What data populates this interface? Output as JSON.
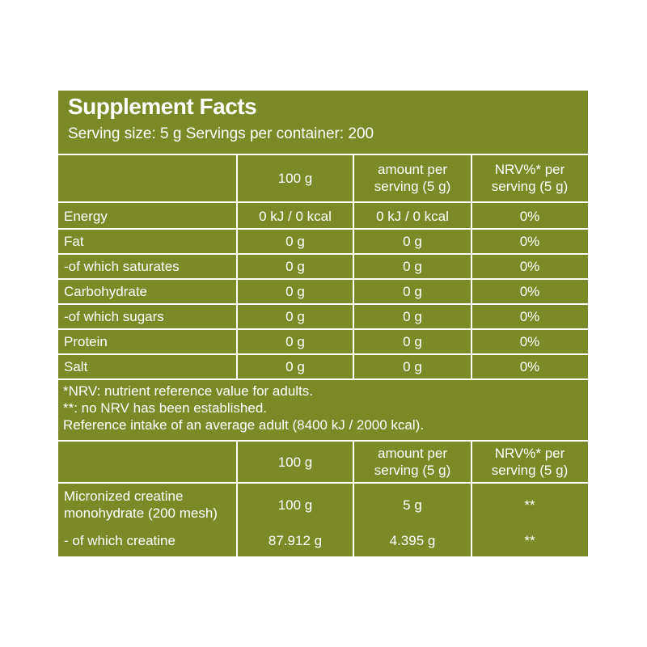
{
  "header": {
    "title": "Supplement Facts",
    "serving": "Serving size: 5 g Servings per container: 200"
  },
  "nutrition_table": {
    "columns": [
      [
        "100 g"
      ],
      [
        "amount per",
        "serving (5 g)"
      ],
      [
        "NRV%* per",
        "serving (5 g)"
      ]
    ],
    "rows": [
      [
        "Energy",
        "0 kJ / 0 kcal",
        "0 kJ / 0 kcal",
        "0%"
      ],
      [
        "Fat",
        "0 g",
        "0 g",
        "0%"
      ],
      [
        "-of which saturates",
        "0 g",
        "0 g",
        "0%"
      ],
      [
        "Carbohydrate",
        "0 g",
        "0 g",
        "0%"
      ],
      [
        "-of which sugars",
        "0 g",
        "0 g",
        "0%"
      ],
      [
        "Protein",
        "0 g",
        "0 g",
        "0%"
      ],
      [
        "Salt",
        "0 g",
        "0 g",
        "0%"
      ]
    ]
  },
  "notes": [
    "*NRV: nutrient reference value for adults.",
    "**: no NRV has been established.",
    "Reference intake of an average adult (8400 kJ / 2000 kcal)."
  ],
  "ingredient_table": {
    "columns": [
      [
        "100 g"
      ],
      [
        "amount per",
        "serving (5 g)"
      ],
      [
        "NRV%* per",
        "serving (5 g)"
      ]
    ],
    "rows": [
      [
        [
          "Micronized creatine",
          "monohydrate (200 mesh)"
        ],
        "100 g",
        "5 g",
        "**"
      ],
      [
        [
          "- of which creatine"
        ],
        "87.912 g",
        "4.395 g",
        "**"
      ]
    ]
  }
}
